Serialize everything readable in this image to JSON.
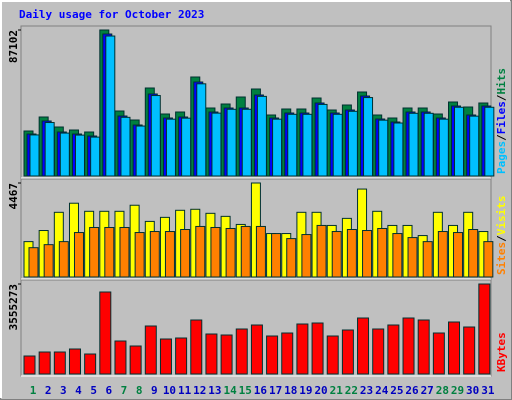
{
  "title": "Daily usage for October 2023",
  "legend_separator": "/",
  "chart_data": [
    {
      "type": "bar",
      "ylim": [
        0,
        87102
      ],
      "yticks": [
        87102
      ],
      "series": [
        {
          "name": "Hits",
          "color": "#008040",
          "values": [
            26847,
            35199,
            29233,
            27444,
            26250,
            87102,
            38779,
            33410,
            52501,
            36989,
            38182,
            59063,
            40569,
            42955,
            47131,
            51904,
            36393,
            39972,
            39972,
            46535,
            39376,
            42359,
            50114,
            36393,
            34603,
            40569,
            40569,
            36989,
            44148,
            41165,
            43552
          ]
        },
        {
          "name": "Files",
          "color": "#0000ff",
          "values": [
            25057,
            32813,
            26250,
            25057,
            23864,
            84717,
            35796,
            30427,
            48921,
            34603,
            35199,
            56080,
            38182,
            40569,
            40569,
            48325,
            34603,
            37586,
            37586,
            43552,
            37586,
            39376,
            47728,
            34006,
            32216,
            38182,
            38182,
            34603,
            41762,
            36393,
            41762
          ]
        },
        {
          "name": "Pages",
          "color": "#00c0ff",
          "values": [
            24500,
            31900,
            25600,
            24400,
            23200,
            83500,
            35000,
            29800,
            48000,
            33900,
            34500,
            55000,
            37500,
            39800,
            39800,
            47500,
            33900,
            36800,
            36800,
            42700,
            36800,
            38600,
            46800,
            33300,
            31600,
            37400,
            37400,
            33900,
            41000,
            35700,
            41000
          ]
        }
      ]
    },
    {
      "type": "bar",
      "ylim": [
        0,
        4467
      ],
      "yticks": [
        4467
      ],
      "series": [
        {
          "name": "Visits",
          "color": "#ffff00",
          "values": [
            1681,
            2209,
            3074,
            3506,
            3122,
            3122,
            3122,
            3410,
            2642,
            2834,
            3170,
            3218,
            3026,
            2882,
            2498,
            4467,
            2065,
            2065,
            3074,
            3074,
            2450,
            2786,
            4179,
            3122,
            2450,
            2450,
            1969,
            3074,
            2450,
            3074,
            2161
          ]
        },
        {
          "name": "Sites",
          "color": "#ff8000",
          "values": [
            1393,
            1537,
            1681,
            2113,
            2353,
            2353,
            2353,
            2113,
            2161,
            2161,
            2257,
            2402,
            2353,
            2305,
            2402,
            2402,
            2065,
            1825,
            2017,
            2450,
            2161,
            2257,
            2209,
            2305,
            2065,
            1873,
            1681,
            2161,
            2113,
            2257,
            1681
          ]
        }
      ]
    },
    {
      "type": "bar",
      "ylim": [
        0,
        3555273
      ],
      "yticks": [
        3555273
      ],
      "categories": [
        "1",
        "2",
        "3",
        "4",
        "5",
        "6",
        "7",
        "8",
        "9",
        "10",
        "11",
        "12",
        "13",
        "14",
        "15",
        "16",
        "17",
        "18",
        "19",
        "20",
        "21",
        "22",
        "23",
        "24",
        "25",
        "26",
        "27",
        "28",
        "29",
        "30",
        "31"
      ],
      "category_colors": [
        "#008040",
        "#0000c0",
        "#0000c0",
        "#0000c0",
        "#0000c0",
        "#0000c0",
        "#008040",
        "#008040",
        "#0000c0",
        "#0000c0",
        "#0000c0",
        "#0000c0",
        "#0000c0",
        "#008040",
        "#008040",
        "#0000c0",
        "#0000c0",
        "#0000c0",
        "#0000c0",
        "#0000c0",
        "#008040",
        "#008040",
        "#0000c0",
        "#0000c0",
        "#0000c0",
        "#0000c0",
        "#0000c0",
        "#008040",
        "#008040",
        "#0000c0",
        "#0000c0"
      ],
      "series": [
        {
          "name": "KBytes",
          "color": "#ff0000",
          "values": [
            711054,
            869066,
            869066,
            987575,
            790060,
            3239246,
            1303599,
            1106084,
            1896144,
            1382605,
            1422108,
            2133162,
            1580120,
            1540617,
            1777635,
            1935647,
            1501114,
            1619623,
            1975150,
            2014653,
            1501114,
            1738132,
            2212168,
            1777635,
            1935647,
            2212168,
            2133162,
            1619623,
            2054156,
            1856641,
            3555273
          ]
        }
      ]
    }
  ]
}
